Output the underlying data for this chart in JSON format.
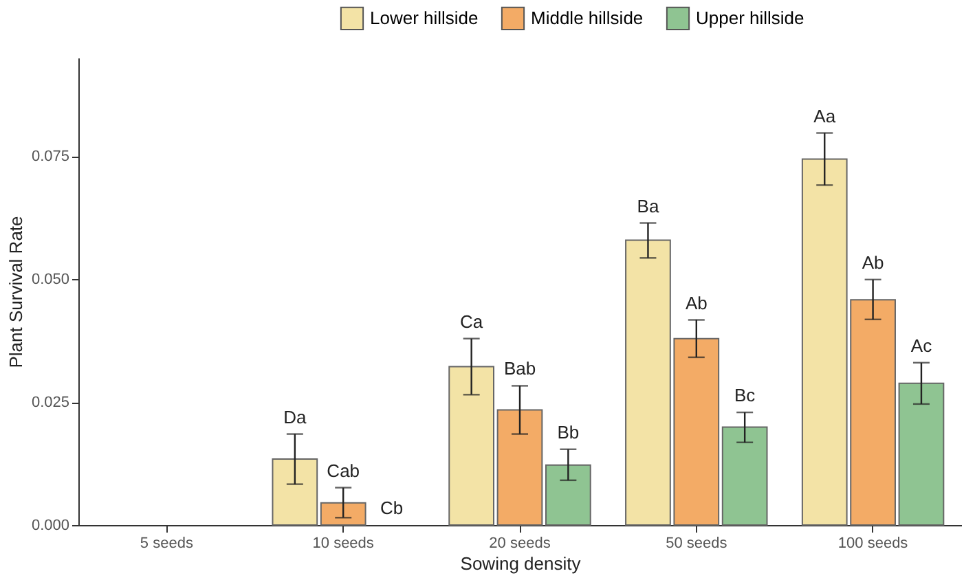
{
  "chart_data": {
    "type": "bar",
    "xlabel": "Sowing density",
    "ylabel": "Plant Survival Rate",
    "categories": [
      "5 seeds",
      "10 seeds",
      "20 seeds",
      "50 seeds",
      "100 seeds"
    ],
    "series": [
      {
        "name": "Lower hillside",
        "color": "#f3e3a6",
        "values": [
          null,
          0.0134,
          0.0322,
          0.0579,
          0.0744
        ],
        "errors": [
          null,
          [
            0.0083,
            0.0185
          ],
          [
            0.0265,
            0.0379
          ],
          [
            0.0543,
            0.0614
          ],
          [
            0.0691,
            0.0797
          ]
        ],
        "value_labels": [
          null,
          "Da",
          "Ca",
          "Ba",
          "Aa"
        ]
      },
      {
        "name": "Middle hillside",
        "color": "#f3ab66",
        "values": [
          null,
          0.0045,
          0.0234,
          0.0379,
          0.0458
        ],
        "errors": [
          null,
          [
            0.0015,
            0.0076
          ],
          [
            0.0185,
            0.0283
          ],
          [
            0.0341,
            0.0417
          ],
          [
            0.0418,
            0.0499
          ]
        ],
        "value_labels": [
          null,
          "Cab",
          "Bab",
          "Ab",
          "Ab"
        ]
      },
      {
        "name": "Upper hillside",
        "color": "#8fc492",
        "values": [
          null,
          null,
          0.0122,
          0.0199,
          0.0288
        ],
        "errors": [
          null,
          null,
          [
            0.0091,
            0.0154
          ],
          [
            0.0168,
            0.0229
          ],
          [
            0.0246,
            0.033
          ]
        ],
        "value_labels": [
          null,
          "Cb",
          "Bb",
          "Bc",
          "Ac"
        ]
      }
    ],
    "ylim": [
      0,
      0.095
    ],
    "yticks": [
      {
        "value": 0,
        "label": "0.000"
      },
      {
        "value": 0.025,
        "label": "0.025"
      },
      {
        "value": 0.05,
        "label": "0.050"
      },
      {
        "value": 0.075,
        "label": "0.075"
      }
    ],
    "grid": false,
    "legend": "top"
  }
}
